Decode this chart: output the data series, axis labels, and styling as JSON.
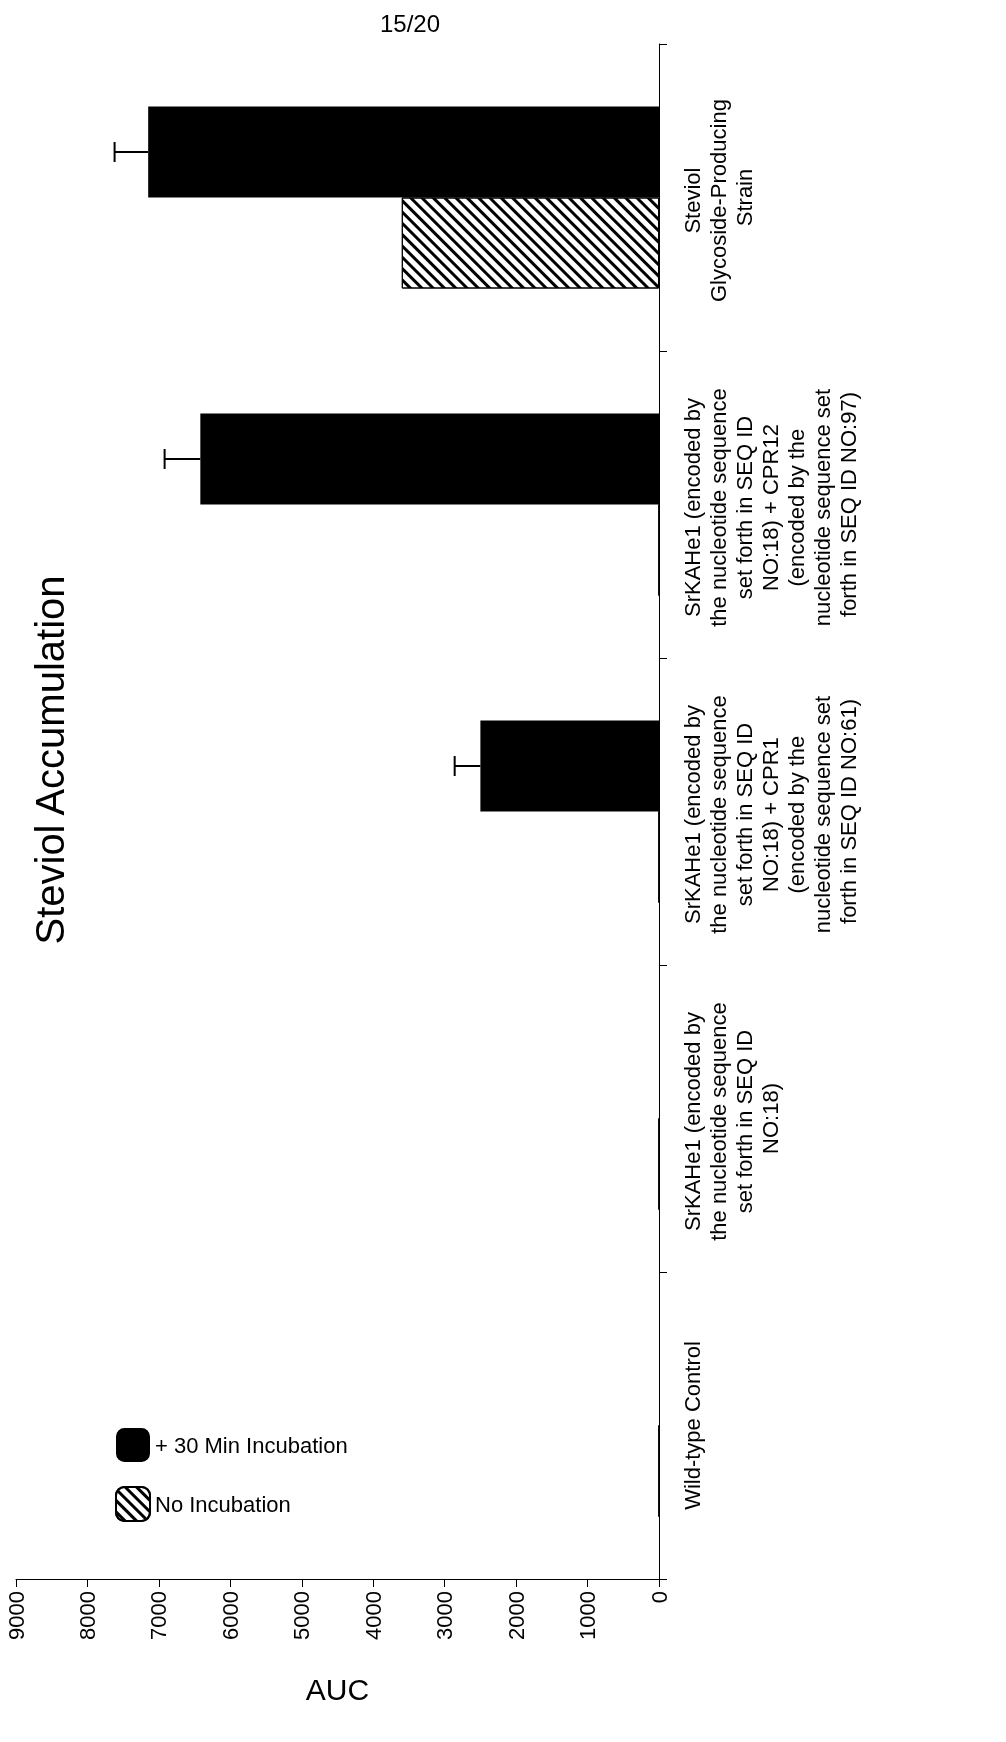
{
  "chart_data": {
    "type": "bar",
    "orientation": "horizontal",
    "title": "Steviol Accumulation",
    "xlabel": "AUC",
    "categories": [
      "Steviol Glycoside-Producing Strain",
      "SrKAHe1 (encoded by the nucleotide sequence set forth in SEQ ID NO:18) + CPR12 (encoded by the nucleotide sequence set forth in SEQ ID NO:97)",
      "SrKAHe1 (encoded by the nucleotide sequence set forth in SEQ ID NO:18) + CPR1 (encoded by the nucleotide sequence set forth in SEQ ID NO:61)",
      "SrKAHe1 (encoded by the nucleotide sequence set forth in SEQ ID NO:18)",
      "Wild-type Control"
    ],
    "series": [
      {
        "name": "+ 30 Min Incubation",
        "color": "#000000",
        "values": [
          7150,
          6420,
          2500,
          0,
          0
        ],
        "errors": [
          [
            7150,
            7620
          ],
          [
            6420,
            6920
          ],
          [
            2500,
            2860
          ],
          null,
          null
        ]
      },
      {
        "name": "No Incubation",
        "color": "#000000",
        "values": [
          3600,
          0,
          0,
          0,
          0
        ]
      }
    ],
    "xlim": [
      9000,
      0
    ],
    "xticks": [
      0,
      1000,
      2000,
      3000,
      4000,
      5000,
      6000,
      7000,
      8000,
      9000
    ],
    "grid": false,
    "legend": "bottom left",
    "annotations": [
      "15/20"
    ]
  }
}
